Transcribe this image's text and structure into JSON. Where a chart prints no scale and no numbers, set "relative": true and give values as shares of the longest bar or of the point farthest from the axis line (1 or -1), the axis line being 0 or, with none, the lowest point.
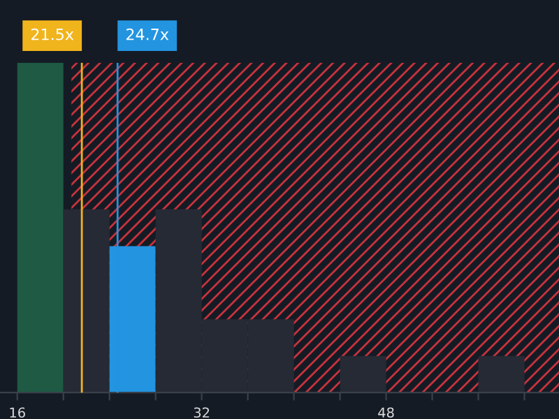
{
  "chart_data": {
    "type": "bar",
    "relative": true,
    "x": [
      18,
      22,
      26,
      30,
      34,
      38,
      42,
      46,
      50,
      54,
      58
    ],
    "values": [
      1,
      0.556,
      0.444,
      0.556,
      0.222,
      0.222,
      0,
      0.111,
      0,
      0,
      0.111
    ],
    "colors": [
      "#1e5a44",
      "#262a35",
      "#2394e0",
      "#262a35",
      "#262a35",
      "#262a35",
      "#262a35",
      "#262a35",
      "#262a35",
      "#262a35",
      "#262a35"
    ],
    "xlim": [
      14.5,
      63
    ],
    "xticks": [
      16,
      {
        "value": 20,
        "label": null
      },
      {
        "value": 24,
        "label": null
      },
      {
        "value": 28,
        "label": null
      },
      32,
      {
        "value": 36,
        "label": null
      },
      {
        "value": 40,
        "label": null
      },
      {
        "value": 44,
        "label": null
      },
      48,
      {
        "value": 52,
        "label": null
      },
      {
        "value": 56,
        "label": null
      },
      {
        "value": 60,
        "label": null
      }
    ],
    "ref_lines": [
      {
        "axis": "x",
        "value": 21.6,
        "label": "21.5x",
        "color": "#f0b41c"
      },
      {
        "axis": "x",
        "value": 24.7,
        "label": "24.7x",
        "color": "#2394e0"
      }
    ],
    "bands": [
      {
        "axis": "x",
        "from": 20.7,
        "to": 63,
        "color": "#c8323c"
      }
    ],
    "grid": false,
    "legend": false
  }
}
